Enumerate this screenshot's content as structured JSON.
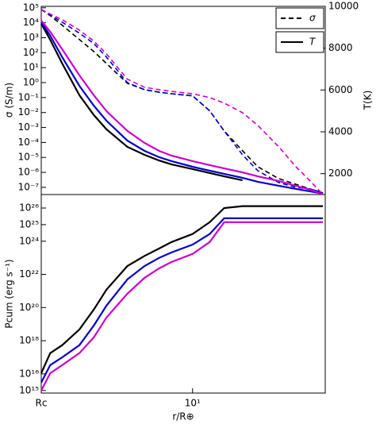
{
  "chart_data": [
    {
      "type": "line",
      "xlog": true,
      "ylog": true,
      "y2log": false,
      "ylabel": "σ (S/m)",
      "y2label": "T(K)",
      "xlim": [
        2,
        41
      ],
      "ylim": [
        3.3e-08,
        125000.0
      ],
      "yticks": [
        {
          "value": 100000.0,
          "label": "10⁵"
        },
        {
          "value": 10000.0,
          "label": "10⁴"
        },
        {
          "value": 1000.0,
          "label": "10³"
        },
        {
          "value": 100.0,
          "label": "10²"
        },
        {
          "value": 10.0,
          "label": "10¹"
        },
        {
          "value": 1,
          "label": "10⁰"
        },
        {
          "value": 0.1,
          "label": "10⁻¹"
        },
        {
          "value": 0.01,
          "label": "10⁻²"
        },
        {
          "value": 0.001,
          "label": "10⁻³"
        },
        {
          "value": 0.0001,
          "label": "10⁻⁴"
        },
        {
          "value": 1e-05,
          "label": "10⁻⁵"
        },
        {
          "value": 1e-06,
          "label": "10⁻⁶"
        },
        {
          "value": 1e-07,
          "label": "10⁻⁷"
        }
      ],
      "y2lim": [
        1000,
        10000
      ],
      "y2ticks": [
        2000,
        4000,
        6000,
        8000,
        10000
      ],
      "x": [
        2,
        2.2,
        2.5,
        3,
        3.5,
        4,
        5,
        6,
        7,
        8,
        10,
        12,
        14,
        17,
        20,
        25,
        30,
        35,
        40
      ],
      "series": [
        {
          "color": "#000000",
          "dash": true,
          "axis": "y",
          "values": [
            78000.0,
            30000.0,
            6800.0,
            760,
            120,
            19,
            0.9,
            0.34,
            0.23,
            0.18,
            0.13,
            0.013,
            0.00059,
            2.8e-05,
            2.4e-06,
            3.8e-07,
            1.6e-07,
            7.8e-08,
            4.3e-08
          ]
        },
        {
          "color": "#0000cc",
          "dash": true,
          "axis": "y",
          "values": [
            78000.0,
            33000.0,
            11000.0,
            2000.0,
            410,
            51,
            1.0,
            0.34,
            0.23,
            0.18,
            0.13,
            0.013,
            0.00059,
            1.5e-05,
            1.3e-06,
            2.1e-07,
            1e-07,
            7.8e-08,
            4.3e-08
          ]
        },
        {
          "color": "#cc00cc",
          "dash": true,
          "axis": "y",
          "values": [
            78000.0,
            38000.0,
            16000.0,
            3200.0,
            590,
            83,
            1.7,
            0.49,
            0.34,
            0.26,
            0.18,
            0.1,
            0.043,
            0.0098,
            0.0014,
            5.1e-05,
            2.4e-06,
            2.6e-07,
            3.3e-08
          ]
        },
        {
          "color": "#000000",
          "dash": false,
          "axis": "y2",
          "values": [
            9170,
            8400,
            7270,
            5750,
            4800,
            4120,
            3280,
            2900,
            2630,
            2440,
            2220,
            2030,
            1870,
            1680,
            null,
            null,
            null,
            null,
            null
          ]
        },
        {
          "color": "#0000cc",
          "dash": false,
          "axis": "y2",
          "values": [
            9240,
            8600,
            7570,
            6200,
            5250,
            4530,
            3580,
            3090,
            2790,
            2600,
            2330,
            2140,
            1990,
            1800,
            1610,
            1420,
            1270,
            1150,
            1040
          ]
        },
        {
          "color": "#cc00cc",
          "dash": false,
          "axis": "y2",
          "values": [
            9320,
            8790,
            7950,
            6700,
            5750,
            4990,
            4040,
            3470,
            3090,
            2860,
            2600,
            2410,
            2250,
            2060,
            1870,
            1650,
            1420,
            1230,
            1000
          ]
        }
      ],
      "legend": {
        "position": "upper right",
        "entries": [
          {
            "label": "σ",
            "dash": true
          },
          {
            "label": "T",
            "dash": false
          }
        ]
      }
    },
    {
      "type": "line",
      "xlog": true,
      "ylog": true,
      "ylabel": "Pcum (erg s⁻¹)",
      "xlabel": "r/R⊕",
      "xlim": [
        2,
        41
      ],
      "xticks": [
        {
          "value": 2,
          "label": "Rc"
        },
        {
          "value": 10,
          "label": "10¹"
        }
      ],
      "ylim": [
        700000000000000.0,
        6.5e+26
      ],
      "yticks": [
        {
          "value": 1000000000000000.0,
          "label": "10¹⁵"
        },
        {
          "value": 1e+16,
          "label": "10¹⁶"
        },
        {
          "value": 1e+18,
          "label": "10¹⁸"
        },
        {
          "value": 1e+20,
          "label": "10²⁰"
        },
        {
          "value": 1e+22,
          "label": "10²²"
        },
        {
          "value": 1e+24,
          "label": "10²⁴"
        },
        {
          "value": 1e+25,
          "label": "10²⁵"
        },
        {
          "value": 1e+26,
          "label": "10²⁶"
        }
      ],
      "x": [
        2,
        2.2,
        2.5,
        3,
        3.5,
        4,
        5,
        6,
        7,
        8,
        10,
        12,
        14,
        17,
        20,
        25,
        30,
        35,
        40
      ],
      "series": [
        {
          "color": "#000000",
          "dash": false,
          "values": [
            1.1e+16,
            1.8e+17,
            5.4e+17,
            4.8e+18,
            7.6e+19,
            1.2e+21,
            3.2e+22,
            1.3e+23,
            3.6e+23,
            8.9e+23,
            2.7e+24,
            1.4e+25,
            1e+26,
            1.3e+26,
            1.3e+26,
            1.3e+26,
            1.3e+26,
            1.3e+26,
            1.3e+26
          ]
        },
        {
          "color": "#0000cc",
          "dash": false,
          "values": [
            3000000000000000.0,
            3.4e+16,
            1e+17,
            5.4e+17,
            8.3e+18,
            1.3e+20,
            5e+21,
            3.2e+22,
            9.8e+22,
            2.1e+23,
            6.3e+23,
            2.7e+24,
            2.4e+25,
            2.4e+25,
            2.4e+25,
            2.4e+25,
            2.4e+25,
            2.4e+25,
            2.4e+25
          ]
        },
        {
          "color": "#cc00cc",
          "dash": false,
          "values": [
            1000000000000000.0,
            1.1e+16,
            3.4e+16,
            1.8e+17,
            1.6e+18,
            2.5e+19,
            6.9e+20,
            6.2e+21,
            2.3e+22,
            5.6e+22,
            1.7e+23,
            8.9e+23,
            1.4e+25,
            1.4e+25,
            1.4e+25,
            1.4e+25,
            1.4e+25,
            1.4e+25,
            1.4e+25
          ]
        }
      ]
    }
  ]
}
